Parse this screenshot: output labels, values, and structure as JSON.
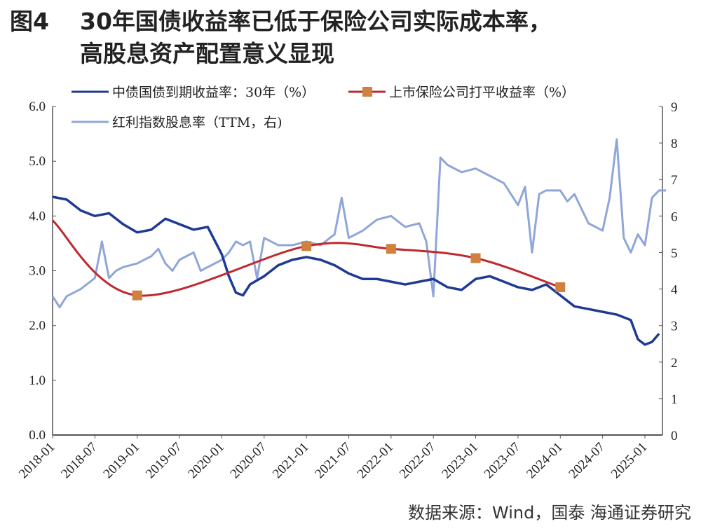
{
  "title": {
    "figure": "图4",
    "line1": "30年国债收益率已低于保险公司实际成本率，",
    "line2": "高股息资产配置意义显现"
  },
  "source": "数据来源：Wind，国泰 海通证券研究",
  "colors": {
    "bond": "#1f3a93",
    "insurance": "#c0282d",
    "marker": "#d0813f",
    "dividend": "#8fa6d8"
  },
  "chart_data": {
    "type": "line",
    "x_unit": "months since 2018-01",
    "x_tick_labels": [
      "2018-01",
      "2018-07",
      "2019-01",
      "2019-07",
      "2020-01",
      "2020-07",
      "2021-01",
      "2021-07",
      "2022-01",
      "2022-07",
      "2023-01",
      "2023-07",
      "2024-01",
      "2024-07",
      "2025-01"
    ],
    "y_left": {
      "range": [
        0,
        6
      ],
      "ticks": [
        "0.0",
        "1.0",
        "2.0",
        "3.0",
        "4.0",
        "5.0",
        "6.0"
      ]
    },
    "y_right": {
      "range": [
        0,
        9
      ],
      "ticks": [
        "0",
        "1",
        "2",
        "3",
        "4",
        "5",
        "6",
        "7",
        "8",
        "9"
      ]
    },
    "legend": [
      "中债国债到期收益率：30年（%）",
      "上市保险公司打平收益率（%）",
      "红利指数股息率（TTM，右)"
    ],
    "series": [
      {
        "name": "中债国债到期收益率：30年（%）",
        "axis": "left",
        "points": [
          [
            0,
            4.35
          ],
          [
            2,
            4.3
          ],
          [
            4,
            4.1
          ],
          [
            6,
            4.0
          ],
          [
            8,
            4.05
          ],
          [
            10,
            3.85
          ],
          [
            12,
            3.7
          ],
          [
            14,
            3.75
          ],
          [
            16,
            3.95
          ],
          [
            18,
            3.85
          ],
          [
            20,
            3.75
          ],
          [
            22,
            3.8
          ],
          [
            24,
            3.3
          ],
          [
            25,
            2.9
          ],
          [
            26,
            2.6
          ],
          [
            27,
            2.55
          ],
          [
            28,
            2.75
          ],
          [
            30,
            2.9
          ],
          [
            32,
            3.1
          ],
          [
            34,
            3.2
          ],
          [
            36,
            3.25
          ],
          [
            38,
            3.2
          ],
          [
            40,
            3.1
          ],
          [
            42,
            2.95
          ],
          [
            44,
            2.85
          ],
          [
            46,
            2.85
          ],
          [
            48,
            2.8
          ],
          [
            50,
            2.75
          ],
          [
            52,
            2.8
          ],
          [
            54,
            2.85
          ],
          [
            56,
            2.7
          ],
          [
            58,
            2.65
          ],
          [
            60,
            2.85
          ],
          [
            62,
            2.9
          ],
          [
            64,
            2.8
          ],
          [
            66,
            2.7
          ],
          [
            68,
            2.65
          ],
          [
            70,
            2.75
          ],
          [
            72,
            2.55
          ],
          [
            74,
            2.35
          ],
          [
            76,
            2.3
          ],
          [
            78,
            2.25
          ],
          [
            80,
            2.2
          ],
          [
            82,
            2.1
          ],
          [
            83,
            1.75
          ],
          [
            84,
            1.65
          ],
          [
            85,
            1.7
          ],
          [
            86,
            1.85
          ]
        ]
      },
      {
        "name": "上市保险公司打平收益率（%）",
        "axis": "left",
        "points": [
          [
            0,
            3.92
          ],
          [
            12,
            2.55
          ],
          [
            36,
            3.45
          ],
          [
            48,
            3.4
          ],
          [
            60,
            3.23
          ],
          [
            72,
            2.7
          ]
        ],
        "markers": [
          false,
          true,
          true,
          true,
          true,
          true
        ]
      },
      {
        "name": "红利指数股息率（TTM，右)",
        "axis": "right",
        "points": [
          [
            0,
            3.8
          ],
          [
            1,
            3.5
          ],
          [
            2,
            3.8
          ],
          [
            4,
            4.0
          ],
          [
            6,
            4.3
          ],
          [
            7,
            5.3
          ],
          [
            8,
            4.3
          ],
          [
            9,
            4.5
          ],
          [
            10,
            4.6
          ],
          [
            12,
            4.7
          ],
          [
            14,
            4.9
          ],
          [
            15,
            5.1
          ],
          [
            16,
            4.7
          ],
          [
            17,
            4.5
          ],
          [
            18,
            4.8
          ],
          [
            20,
            5.0
          ],
          [
            21,
            4.5
          ],
          [
            22,
            4.6
          ],
          [
            24,
            4.8
          ],
          [
            25,
            5.0
          ],
          [
            26,
            5.3
          ],
          [
            27,
            5.2
          ],
          [
            28,
            5.3
          ],
          [
            29,
            4.3
          ],
          [
            30,
            5.4
          ],
          [
            32,
            5.2
          ],
          [
            34,
            5.2
          ],
          [
            36,
            5.3
          ],
          [
            38,
            5.2
          ],
          [
            40,
            5.5
          ],
          [
            41,
            6.5
          ],
          [
            42,
            5.4
          ],
          [
            44,
            5.6
          ],
          [
            46,
            5.9
          ],
          [
            48,
            6.0
          ],
          [
            50,
            5.7
          ],
          [
            52,
            5.8
          ],
          [
            53,
            5.3
          ],
          [
            54,
            3.8
          ],
          [
            55,
            7.6
          ],
          [
            56,
            7.4
          ],
          [
            58,
            7.2
          ],
          [
            60,
            7.3
          ],
          [
            62,
            7.1
          ],
          [
            64,
            6.9
          ],
          [
            66,
            6.3
          ],
          [
            67,
            6.8
          ],
          [
            68,
            5.0
          ],
          [
            69,
            6.6
          ],
          [
            70,
            6.7
          ],
          [
            72,
            6.7
          ],
          [
            73,
            6.4
          ],
          [
            74,
            6.6
          ],
          [
            76,
            5.8
          ],
          [
            78,
            5.6
          ],
          [
            79,
            6.5
          ],
          [
            80,
            8.1
          ],
          [
            81,
            5.4
          ],
          [
            82,
            5.0
          ],
          [
            83,
            5.5
          ],
          [
            84,
            5.2
          ],
          [
            85,
            6.5
          ],
          [
            86,
            6.7
          ],
          [
            87,
            6.7
          ]
        ]
      }
    ]
  }
}
